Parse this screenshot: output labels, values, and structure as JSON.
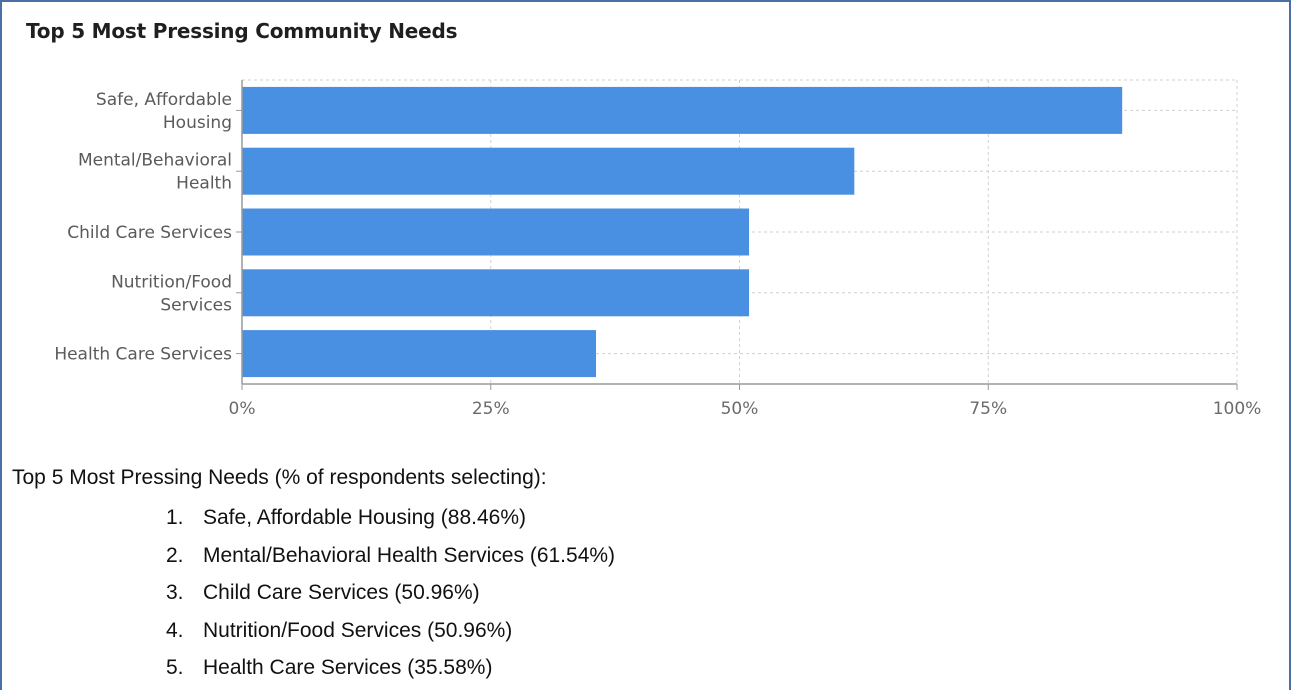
{
  "chart_data": {
    "type": "bar",
    "orientation": "horizontal",
    "title": "Top 5 Most Pressing Community Needs",
    "categories": [
      [
        "Safe, Affordable",
        "Housing"
      ],
      [
        "Mental/Behavioral",
        "Health"
      ],
      [
        "Child Care Services"
      ],
      [
        "Nutrition/Food",
        "Services"
      ],
      [
        "Health Care Services"
      ]
    ],
    "values": [
      88.46,
      61.54,
      50.96,
      50.96,
      35.58
    ],
    "xlim": [
      0,
      100
    ],
    "x_ticks": [
      0,
      25,
      50,
      75,
      100
    ],
    "x_tick_labels": [
      "0%",
      "25%",
      "50%",
      "75%",
      "100%"
    ],
    "grid": true,
    "bar_color": "#4a90e2"
  },
  "summary": {
    "heading": "Top 5 Most Pressing Needs (% of respondents selecting):",
    "items": [
      {
        "num": "1.",
        "text": "Safe, Affordable Housing (88.46%)"
      },
      {
        "num": "2.",
        "text": "Mental/Behavioral Health Services (61.54%)"
      },
      {
        "num": "3.",
        "text": "Child Care Services (50.96%)"
      },
      {
        "num": "4.",
        "text": "Nutrition/Food Services (50.96%)"
      },
      {
        "num": "5.",
        "text": "Health Care Services (35.58%)"
      }
    ]
  }
}
